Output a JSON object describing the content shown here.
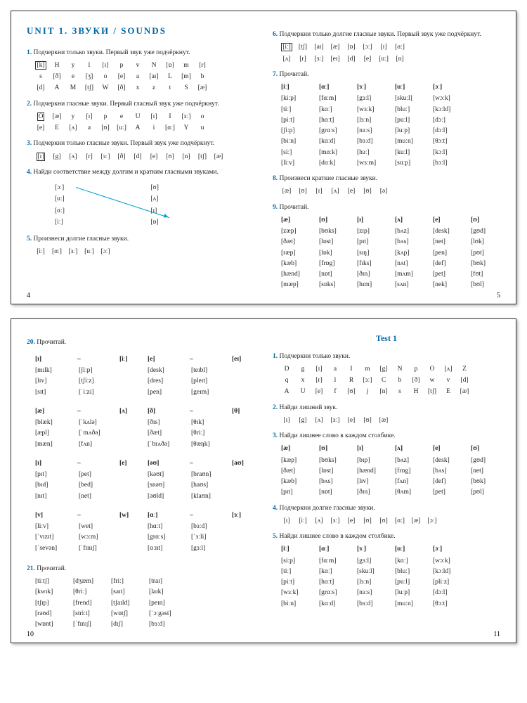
{
  "colors": {
    "accent": "#0066a6",
    "arrow": "#00a0d0",
    "text": "#222",
    "border": "#333"
  },
  "s1": {
    "title": "UNIT 1. ЗВУКИ / SOUNDS",
    "pl": "4",
    "pr": "5",
    "t1": {
      "n": "1.",
      "txt": "Подчеркни только звуки. Первый звук уже подчёркнут.",
      "r": [
        [
          "[k]",
          "H",
          "y",
          "l",
          "[ɪ]",
          "p",
          "v",
          "N",
          "[ɒ]",
          "m",
          "[r]"
        ],
        [
          "s",
          "[ð]",
          "e",
          "[ʒ]",
          "o",
          "[e]",
          "a",
          "[aɪ]",
          "L",
          "[m]",
          "b"
        ],
        [
          "[d]",
          "A",
          "M",
          "[tʃ]",
          "W",
          "[ð]",
          "x",
          "z",
          "t",
          "S",
          "[æ]"
        ]
      ]
    },
    "t2": {
      "n": "2.",
      "txt": "Подчеркни гласные звуки. Первый гласный звук уже подчёркнут.",
      "r": [
        [
          "O",
          "[æ]",
          "y",
          "[ɪ]",
          "p",
          "e",
          "U",
          "[ɪ]",
          "I",
          "[ɜː]",
          "o"
        ],
        [
          "[e]",
          "E",
          "[ʌ]",
          "a",
          "[ʊ]",
          "[uː]",
          "A",
          "i",
          "[ɑː]",
          "Y",
          "u"
        ]
      ]
    },
    "t3": {
      "n": "3.",
      "txt": "Подчеркни только гласные звуки. Первый звук уже подчёркнут.",
      "r": [
        [
          "[ɪ]",
          "[g]",
          "[ʌ]",
          "[r]",
          "[ɜː]",
          "[ð]",
          "[d]",
          "[e]",
          "[ʊ]",
          "[n]",
          "[tʃ]",
          "[æ]"
        ]
      ]
    },
    "t4": {
      "n": "4.",
      "txt": "Найди соответствие между долгим и кратким гласными звуками.",
      "left": [
        "[ɔː]",
        "[uː]",
        "[ɑː]",
        "[iː]"
      ],
      "right": [
        "[ʊ]",
        "[ʌ]",
        "[ɪ]",
        "[ɒ]"
      ]
    },
    "t5": {
      "n": "5.",
      "txt": "Произнеси долгие гласные звуки.",
      "r": [
        [
          "[iː]",
          "[ɑː]",
          "[ɜː]",
          "[uː]",
          "[ɔː]"
        ]
      ]
    },
    "t6": {
      "n": "6.",
      "txt": "Подчеркни только долгие гласные звуки. Первый звук уже подчёркнут.",
      "r": [
        [
          "[iː]",
          "[tʃ]",
          "[aɪ]",
          "[æ]",
          "[ɒ]",
          "[ɔː]",
          "[ɪ]",
          "[ɑː]"
        ],
        [
          "[ʌ]",
          "[r]",
          "[ɜː]",
          "[eɪ]",
          "[d]",
          "[e]",
          "[uː]",
          "[n]"
        ]
      ]
    },
    "t7": {
      "n": "7.",
      "txt": "Прочитай.",
      "h": [
        "[iː]",
        "[ɑː]",
        "[ɜː]",
        "[uː]",
        "[ɔː]"
      ],
      "w": [
        [
          "[kiːp]",
          "[fɑːm]",
          "[gɜːl]",
          "[skuːl]",
          "[wɔːk]"
        ],
        [
          "[tiː]",
          "[kɑː]",
          "[wɜːk]",
          "[bluː]",
          "[kɔːld]"
        ],
        [
          "[piːt]",
          "[hɑːt]",
          "[lɜːn]",
          "[puːl]",
          "[dɔː]"
        ],
        [
          "[ʃiːp]",
          "[grɑːs]",
          "[nɜːs]",
          "[luːp]",
          "[dɔːl]"
        ],
        [
          "[biːn]",
          "[kɑːd]",
          "[bɜːd]",
          "[muːn]",
          "[θɔːt]"
        ],
        [
          "[siː]",
          "[mɑːk]",
          "[hɜː]",
          "[kuːl]",
          "[kɔːl]"
        ],
        [
          "[liːv]",
          "[dɑːk]",
          "[wɜːm]",
          "[suːp]",
          "[bɔːl]"
        ]
      ]
    },
    "t8": {
      "n": "8.",
      "txt": "Произнеси краткие гласные звуки.",
      "r": [
        [
          "[æ]",
          "[ʊ]",
          "[ɪ]",
          "[ʌ]",
          "[e]",
          "[ʊ]",
          "[ə]"
        ]
      ]
    },
    "t9": {
      "n": "9.",
      "txt": "Прочитай.",
      "h": [
        "[æ]",
        "[ʊ]",
        "[ɪ]",
        "[ʌ]",
        "[e]",
        "[ʊ]"
      ],
      "w": [
        [
          "[zæp]",
          "[bʊks]",
          "[zɪp]",
          "[bʌz]",
          "[desk]",
          "[gʊd]"
        ],
        [
          "[ðæt]",
          "[lɒst]",
          "[pɪt]",
          "[bʌs]",
          "[net]",
          "[lʊk]"
        ],
        [
          "[ræp]",
          "[lɒk]",
          "[sɪŋ]",
          "[kʌp]",
          "[pen]",
          "[pʊt]"
        ],
        [
          "[kæb]",
          "[frɒg]",
          "[fɪks]",
          "[nʌt]",
          "[def]",
          "[bʊk]"
        ],
        [
          "[hænd]",
          "[nɒt]",
          "[ðɪn]",
          "[mʌm]",
          "[pet]",
          "[fʊt]"
        ],
        [
          "[mæp]",
          "[sɒks]",
          "[hɪm]",
          "[sʌn]",
          "[nek]",
          "[bʊl]"
        ]
      ]
    }
  },
  "s2": {
    "pl": "10",
    "pr": "11",
    "t20": {
      "n": "20.",
      "txt": "Прочитай.",
      "g": [
        {
          "h": [
            "[ɪ]",
            "–",
            "[iː]"
          ],
          "w": [
            [
              "[mɪlk]",
              "[ʃiːp]"
            ],
            [
              "[lɪv]",
              "[tʃiːz]"
            ],
            [
              "[sɪt]",
              "[ˈiːzi]"
            ]
          ]
        },
        {
          "h": [
            "[e]",
            "–",
            "[eɪ]"
          ],
          "w": [
            [
              "[desk]",
              "[teɪbl]"
            ],
            [
              "[dres]",
              "[pleɪt]"
            ],
            [
              "[pen]",
              "[geɪm]"
            ]
          ]
        },
        {
          "h": [
            "[æ]",
            "–",
            "[ʌ]"
          ],
          "w": [
            [
              "[blæk]",
              "[ˈkʌlə]"
            ],
            [
              "[æpl]",
              "[ˈmʌðə]"
            ],
            [
              "[mæn]",
              "[fʌn]"
            ]
          ]
        },
        {
          "h": [
            "[ð]",
            "–",
            "[θ]"
          ],
          "w": [
            [
              "[ðɪs]",
              "[θɪk]"
            ],
            [
              "[ðæt]",
              "[θriː]"
            ],
            [
              "[ˈbrʌðə]",
              "[θæŋk]"
            ]
          ]
        },
        {
          "h": [
            "[ɪ]",
            "–",
            "[e]"
          ],
          "w": [
            [
              "[pɪt]",
              "[pet]"
            ],
            [
              "[bɪd]",
              "[bed]"
            ],
            [
              "[nɪt]",
              "[net]"
            ]
          ]
        },
        {
          "h": [
            "[əʊ]",
            "–",
            "[aʊ]"
          ],
          "w": [
            [
              "[kəʊt]",
              "[braʊn]"
            ],
            [
              "[snəʊ]",
              "[haʊs]"
            ],
            [
              "[əʊld]",
              "[klaʊn]"
            ]
          ]
        },
        {
          "h": [
            "[v]",
            "–",
            "[w]"
          ],
          "w": [
            [
              "[liːv]",
              "[wet]"
            ],
            [
              "[ˈvɪzɪt]",
              "[wɔːm]"
            ],
            [
              "[ˈsevən]",
              "[ˈfɪnɪʃ]"
            ]
          ]
        },
        {
          "h": [
            "[ɑː]",
            "–",
            "[ɜː]"
          ],
          "w": [
            [
              "[hɑːt]",
              "[bɜːd]"
            ],
            [
              "[grɑːs]",
              "[ˈɜːli]"
            ],
            [
              "[ɑːnt]",
              "[gɜːl]"
            ]
          ]
        }
      ]
    },
    "t21": {
      "n": "21.",
      "txt": "Прочитай.",
      "w": [
        [
          "[tiːtʃ]",
          "[dʒæm]",
          "[friː]",
          "[traɪ]"
        ],
        [
          "[kwɪk]",
          "[θriː]",
          "[saɪt]",
          "[laɪk]"
        ],
        [
          "[tʃɪp]",
          "[frend]",
          "[tʃaɪld]",
          "[peɪn]"
        ],
        [
          "[rəʊd]",
          "[striːt]",
          "[wɒtʃ]",
          "[ˈɔːgəst]"
        ],
        [
          "[wɒnt]",
          "[ˈfɪnɪʃ]",
          "[dɪʃ]",
          "[bɜːd]"
        ]
      ]
    },
    "test": {
      "title": "Test 1",
      "t1": {
        "n": "1.",
        "txt": "Подчеркни только звуки.",
        "r": [
          [
            "D",
            "g",
            "[ɪ]",
            "a",
            "I",
            "m",
            "[g]",
            "N",
            "p",
            "O",
            "[ʌ]",
            "Z"
          ],
          [
            "q",
            "x",
            "[r]",
            "l",
            "R",
            "[ɜː]",
            "C",
            "b",
            "[ð]",
            "w",
            "v",
            "[d]"
          ],
          [
            "A",
            "U",
            "[e]",
            "f",
            "[ʊ]",
            "j",
            "[n]",
            "s",
            "H",
            "[tʃ]",
            "E",
            "[æ]"
          ]
        ]
      },
      "t2": {
        "n": "2.",
        "txt": "Найди лишний звук.",
        "r": [
          [
            "[ɪ]",
            "[g]",
            "[ʌ]",
            "[ɜː]",
            "[e]",
            "[ʊ]",
            "[æ]"
          ]
        ]
      },
      "t3": {
        "n": "3.",
        "txt": "Найди лишнее слово в каждом столбике.",
        "h": [
          "[æ]",
          "[ʊ]",
          "[ɪ]",
          "[ʌ]",
          "[e]",
          "[ʊ]"
        ],
        "w": [
          [
            "[kæp]",
            "[bʊks]",
            "[bɪp]",
            "[bʌz]",
            "[desk]",
            "[gʊd]"
          ],
          [
            "[ðæt]",
            "[lɒst]",
            "[hænd]",
            "[frɒg]",
            "[bʌs]",
            "[net]"
          ],
          [
            "[kæb]",
            "[bʌs]",
            "[lɪv]",
            "[fʌn]",
            "[def]",
            "[bʊk]"
          ],
          [
            "[pɪt]",
            "[nɒt]",
            "[ðɪn]",
            "[θʌm]",
            "[pet]",
            "[pʊl]"
          ]
        ]
      },
      "t4": {
        "n": "4.",
        "txt": "Подчеркни долгие гласные звуки.",
        "r": [
          [
            "[ɪ]",
            "[iː]",
            "[ʌ]",
            "[ɜː]",
            "[e]",
            "[ʊ]",
            "[ʊ]",
            "[ɑː]",
            "[æ]",
            "[ɔː]"
          ]
        ]
      },
      "t5": {
        "n": "5.",
        "txt": "Найди лишнее слово в каждом столбике.",
        "h": [
          "[iː]",
          "[ɑː]",
          "[ɜː]",
          "[uː]",
          "[ɔː]"
        ],
        "w": [
          [
            "[siːp]",
            "[fɑːm]",
            "[gɜːl]",
            "[kɑː]",
            "[wɔːk]"
          ],
          [
            "[tiː]",
            "[kɑː]",
            "[skuːl]",
            "[bluː]",
            "[kɔːld]"
          ],
          [
            "[piːt]",
            "[hɑːt]",
            "[lɜːn]",
            "[puːl]",
            "[pliːz]"
          ],
          [
            "[wɜːk]",
            "[grɑːs]",
            "[nɜːs]",
            "[luːp]",
            "[dɔːl]"
          ],
          [
            "[biːn]",
            "[kɑːd]",
            "[bɜːd]",
            "[muːn]",
            "[θɔːt]"
          ]
        ]
      }
    }
  }
}
